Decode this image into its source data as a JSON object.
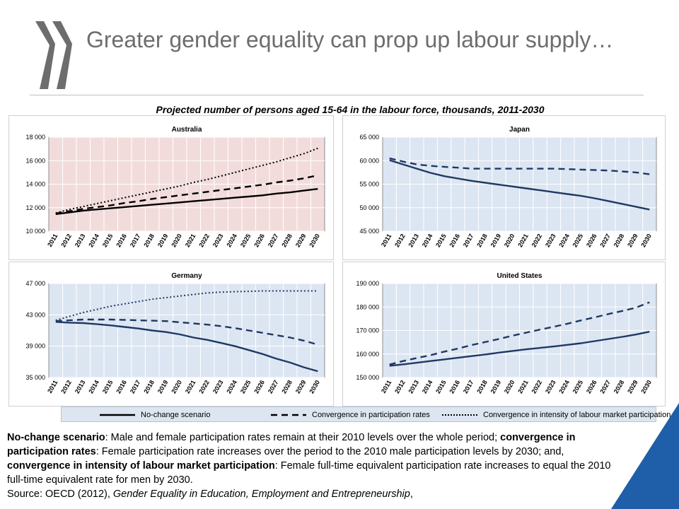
{
  "slide": {
    "title": "Greater gender equality can prop up labour supply…",
    "figure_title": "Projected number of persons aged 15-64 in the labour force, thousands, 2011-2030",
    "colors": {
      "accent_blue": "#1f5ea8",
      "logo_gray": "#6d6d6d",
      "line_dark": "#000000",
      "line_navy": "#1f3864"
    }
  },
  "legend": {
    "no_change": "No-change scenario",
    "convergence_rates": "Convergence in participation rates",
    "convergence_intensity": "Convergence in intensity of labour market participation"
  },
  "notes": {
    "no_change_term": "No-change scenario",
    "no_change_text": ": Male and female participation rates remain at their 2010 levels over the whole period; ",
    "rates_term": "convergence in participation rates",
    "rates_text": ": Female participation rate increases over the period to the 2010 male participation levels by 2030; and, ",
    "intensity_term": "convergence in intensity of labour market participation",
    "intensity_text": ": Female full-time equivalent participation rate increases to equal the 2010 full-time equivalent rate for men by 2030.",
    "source_prefix": "Source: OECD (2012), ",
    "source_title": "Gender Equality in Education, Employment and Entrepreneurship",
    "source_suffix": ","
  },
  "chart_data": [
    {
      "type": "line",
      "title": "Australia",
      "background": "#f2dcdb",
      "x": [
        2011,
        2012,
        2013,
        2014,
        2015,
        2016,
        2017,
        2018,
        2019,
        2020,
        2021,
        2022,
        2023,
        2024,
        2025,
        2026,
        2027,
        2028,
        2029,
        2030
      ],
      "ylim": [
        10000,
        18000
      ],
      "yticks": [
        10000,
        12000,
        14000,
        16000,
        18000
      ],
      "ytick_labels": [
        "10 000",
        "12 000",
        "14 000",
        "16 000",
        "18 000"
      ],
      "grid": true,
      "line_color": "#000000",
      "series": [
        {
          "style": "solid",
          "values": [
            11450,
            11600,
            11750,
            11850,
            11950,
            12050,
            12150,
            12250,
            12350,
            12450,
            12550,
            12650,
            12750,
            12850,
            12950,
            13050,
            13200,
            13300,
            13450,
            13600
          ]
        },
        {
          "style": "dashed",
          "values": [
            11500,
            11700,
            11900,
            12050,
            12200,
            12400,
            12550,
            12750,
            12900,
            13050,
            13200,
            13350,
            13500,
            13650,
            13800,
            13950,
            14150,
            14300,
            14500,
            14750
          ]
        },
        {
          "style": "dotted",
          "values": [
            11550,
            11850,
            12100,
            12350,
            12600,
            12850,
            13100,
            13350,
            13600,
            13850,
            14150,
            14400,
            14700,
            15000,
            15300,
            15600,
            15900,
            16250,
            16600,
            17050
          ]
        }
      ]
    },
    {
      "type": "line",
      "title": "Japan",
      "background": "#dce6f2",
      "x": [
        2011,
        2012,
        2013,
        2014,
        2015,
        2016,
        2017,
        2018,
        2019,
        2020,
        2021,
        2022,
        2023,
        2024,
        2025,
        2026,
        2027,
        2028,
        2029,
        2030
      ],
      "ylim": [
        45000,
        65000
      ],
      "yticks": [
        45000,
        50000,
        55000,
        60000,
        65000
      ],
      "ytick_labels": [
        "45 000",
        "50 000",
        "55 000",
        "60 000",
        "65 000"
      ],
      "grid": true,
      "line_color": "#1f3864",
      "series": [
        {
          "style": "solid",
          "values": [
            60100,
            59200,
            58300,
            57400,
            56700,
            56200,
            55700,
            55300,
            54900,
            54500,
            54100,
            53700,
            53300,
            52900,
            52500,
            52000,
            51400,
            50800,
            50200,
            49600
          ]
        },
        {
          "style": "dashed",
          "values": [
            60500,
            59800,
            59200,
            58900,
            58700,
            58500,
            58300,
            58300,
            58300,
            58300,
            58300,
            58300,
            58300,
            58200,
            58100,
            58000,
            57900,
            57700,
            57500,
            57100
          ]
        }
      ]
    },
    {
      "type": "line",
      "title": "Germany",
      "background": "#dce6f2",
      "x": [
        2011,
        2012,
        2013,
        2014,
        2015,
        2016,
        2017,
        2018,
        2019,
        2020,
        2021,
        2022,
        2023,
        2024,
        2025,
        2026,
        2027,
        2028,
        2029,
        2030
      ],
      "ylim": [
        35000,
        47000
      ],
      "yticks": [
        35000,
        39000,
        43000,
        47000
      ],
      "ytick_labels": [
        "35 000",
        "39 000",
        "43 000",
        "47 000"
      ],
      "grid": true,
      "line_color": "#1f3864",
      "series": [
        {
          "style": "solid",
          "values": [
            42100,
            42000,
            41950,
            41800,
            41650,
            41450,
            41250,
            41000,
            40800,
            40500,
            40100,
            39800,
            39400,
            39000,
            38500,
            38000,
            37400,
            36900,
            36300,
            35800
          ]
        },
        {
          "style": "dashed",
          "values": [
            42200,
            42300,
            42400,
            42400,
            42400,
            42350,
            42300,
            42250,
            42200,
            42050,
            41900,
            41750,
            41550,
            41300,
            41000,
            40700,
            40400,
            40100,
            39700,
            39200
          ]
        },
        {
          "style": "dotted",
          "values": [
            42300,
            42800,
            43300,
            43700,
            44100,
            44400,
            44700,
            45000,
            45200,
            45400,
            45600,
            45800,
            45900,
            45950,
            46000,
            46050,
            46050,
            46050,
            46050,
            46050
          ]
        }
      ]
    },
    {
      "type": "line",
      "title": "United States",
      "background": "#dce6f2",
      "x": [
        2011,
        2012,
        2013,
        2014,
        2015,
        2016,
        2017,
        2018,
        2019,
        2020,
        2021,
        2022,
        2023,
        2024,
        2025,
        2026,
        2027,
        2028,
        2029,
        2030
      ],
      "ylim": [
        150000,
        190000
      ],
      "yticks": [
        150000,
        160000,
        170000,
        180000,
        190000
      ],
      "ytick_labels": [
        "150 000",
        "160 000",
        "170 000",
        "180 000",
        "190 000"
      ],
      "grid": true,
      "line_color": "#1f3864",
      "series": [
        {
          "style": "solid",
          "values": [
            155000,
            155600,
            156300,
            157000,
            157700,
            158400,
            159100,
            159800,
            160600,
            161300,
            162000,
            162600,
            163200,
            163900,
            164600,
            165500,
            166400,
            167300,
            168300,
            169500
          ]
        },
        {
          "style": "dashed",
          "values": [
            155500,
            157000,
            158300,
            159500,
            161000,
            162300,
            163800,
            165100,
            166400,
            167800,
            169100,
            170400,
            171600,
            172900,
            174300,
            175600,
            177000,
            178300,
            179700,
            182000
          ]
        }
      ]
    }
  ]
}
